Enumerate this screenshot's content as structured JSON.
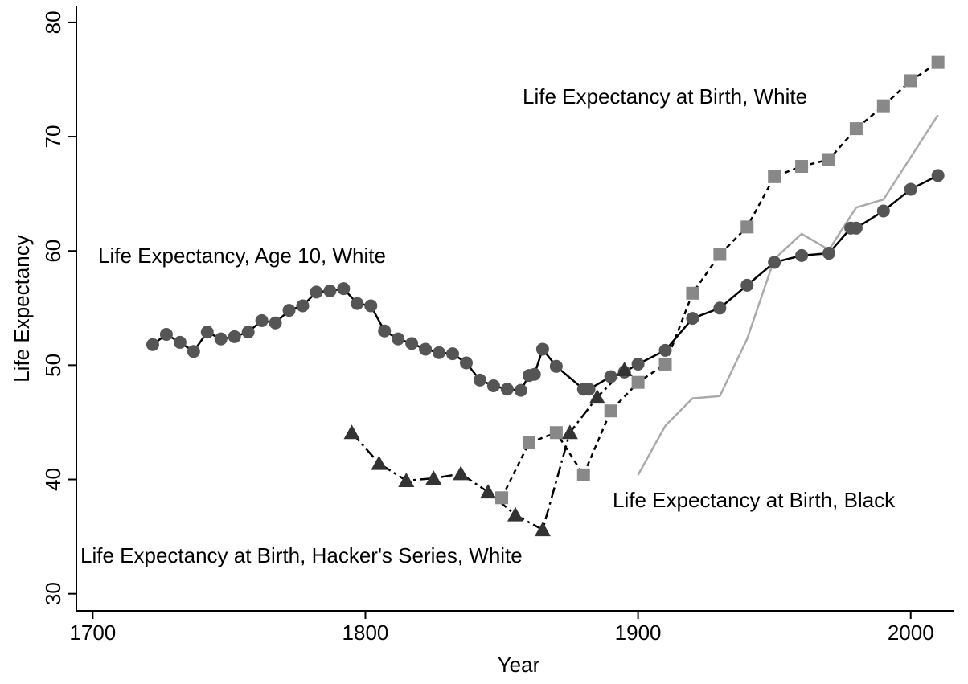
{
  "chart_data": {
    "type": "line",
    "x_label": "Year",
    "y_label": "Life Expectancy",
    "xlim": [
      1694,
      2016
    ],
    "xticks": [
      1700,
      1800,
      1900,
      2000
    ],
    "ylim": [
      28.5,
      81.4
    ],
    "yticks": [
      30,
      40,
      50,
      60,
      70,
      80
    ],
    "series": [
      {
        "name": "Life Expectancy, Age 10, White",
        "color": "#555555",
        "marker": "circle",
        "line_style": "solid",
        "x": [
          1722,
          1727,
          1732,
          1737,
          1742,
          1747,
          1752,
          1757,
          1762,
          1767,
          1772,
          1777,
          1782,
          1787,
          1792,
          1797,
          1802,
          1807,
          1812,
          1817,
          1822,
          1827,
          1832,
          1837,
          1842,
          1847,
          1852,
          1857,
          1860,
          1862,
          1865,
          1870,
          1880,
          1882,
          1890,
          1895,
          1900,
          1910,
          1920,
          1930,
          1940,
          1950,
          1960,
          1970,
          1978,
          1980,
          1990,
          2000,
          2010
        ],
        "values": [
          51.8,
          52.7,
          52.0,
          51.2,
          52.9,
          52.3,
          52.5,
          52.9,
          53.9,
          53.7,
          54.8,
          55.2,
          56.4,
          56.5,
          56.7,
          55.4,
          55.2,
          53.0,
          52.3,
          51.9,
          51.4,
          51.1,
          51.0,
          50.2,
          48.7,
          48.2,
          47.9,
          47.8,
          49.1,
          49.2,
          51.4,
          49.9,
          47.9,
          47.9,
          49.0,
          49.4,
          50.1,
          51.3,
          54.1,
          55.0,
          57.0,
          59.0,
          59.6,
          59.8,
          62.0,
          62.0,
          63.5,
          65.4,
          66.6
        ]
      },
      {
        "name": "Life Expectancy at Birth, White",
        "color": "#888888",
        "marker": "square",
        "line_style": "dash",
        "x": [
          1850,
          1860,
          1870,
          1880,
          1890,
          1900,
          1910,
          1920,
          1930,
          1940,
          1950,
          1960,
          1970,
          1980,
          1990,
          2000,
          2010
        ],
        "values": [
          38.4,
          43.2,
          44.1,
          40.4,
          46.0,
          48.5,
          50.1,
          56.3,
          59.7,
          62.1,
          66.5,
          67.4,
          68.0,
          70.7,
          72.7,
          74.9,
          76.5
        ]
      },
      {
        "name": "Life Expectancy at Birth, Black",
        "color": "#aaaaaa",
        "marker": "none",
        "line_style": "solid",
        "x": [
          1900,
          1910,
          1920,
          1930,
          1940,
          1950,
          1960,
          1970,
          1980,
          1990,
          2000,
          2010
        ],
        "values": [
          40.4,
          44.7,
          47.1,
          47.3,
          52.3,
          59.3,
          61.5,
          60.1,
          63.8,
          64.5,
          68.2,
          71.9
        ]
      },
      {
        "name": "Life Expectancy at Birth, Hacker's Series, White",
        "color": "#333333",
        "marker": "triangle",
        "line_style": "dashdot",
        "x": [
          1795,
          1805,
          1815,
          1825,
          1835,
          1845,
          1855,
          1865,
          1875,
          1885,
          1895
        ],
        "values": [
          44.1,
          41.4,
          39.9,
          40.1,
          40.5,
          38.9,
          36.9,
          35.6,
          44.1,
          47.2,
          49.6
        ]
      }
    ]
  }
}
